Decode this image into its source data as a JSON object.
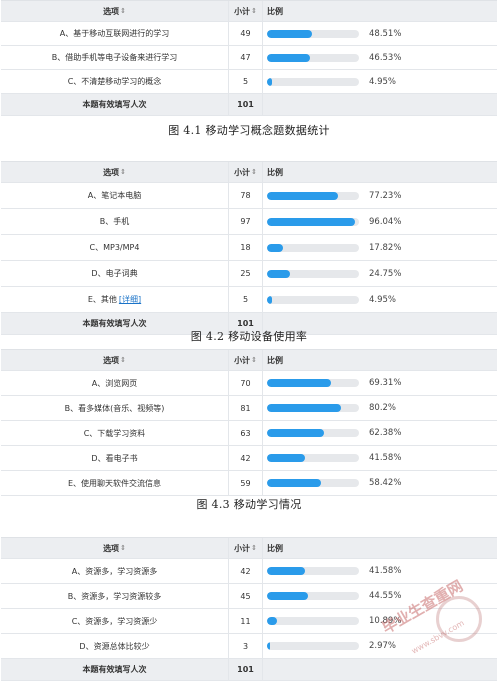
{
  "headers": {
    "option": "选项",
    "count": "小计",
    "ratio": "比例",
    "sort_icon": "⇕"
  },
  "total_label": "本题有效填写人次",
  "tables": [
    {
      "caption": "图 4.1  移动学习概念题数据统计",
      "rows": [
        {
          "label": "A、基于移动互联网进行的学习",
          "count": "49",
          "pct": "48.51%",
          "fraction": 0.4851
        },
        {
          "label": "B、借助手机等电子设备来进行学习",
          "count": "47",
          "pct": "46.53%",
          "fraction": 0.4653
        },
        {
          "label": "C、不清楚移动学习的概念",
          "count": "5",
          "pct": "4.95%",
          "fraction": 0.0495
        }
      ],
      "total": "101"
    },
    {
      "caption": "图 4.2  移动设备使用率",
      "rows": [
        {
          "label": "A、笔记本电脑",
          "count": "78",
          "pct": "77.23%",
          "fraction": 0.7723
        },
        {
          "label": "B、手机",
          "count": "97",
          "pct": "96.04%",
          "fraction": 0.9604
        },
        {
          "label": "C、MP3/MP4",
          "count": "18",
          "pct": "17.82%",
          "fraction": 0.1782
        },
        {
          "label": "D、电子词典",
          "count": "25",
          "pct": "24.75%",
          "fraction": 0.2475
        },
        {
          "label": "E、其他",
          "link": "[详细]",
          "count": "5",
          "pct": "4.95%",
          "fraction": 0.0495
        }
      ],
      "total": "101"
    },
    {
      "caption": "图 4.3  移动学习情况",
      "rows": [
        {
          "label": "A、浏览网页",
          "count": "70",
          "pct": "69.31%",
          "fraction": 0.6931
        },
        {
          "label": "B、看多媒体(音乐、视频等)",
          "count": "81",
          "pct": "80.2%",
          "fraction": 0.802
        },
        {
          "label": "C、下载学习资料",
          "count": "63",
          "pct": "62.38%",
          "fraction": 0.6238
        },
        {
          "label": "D、看电子书",
          "count": "42",
          "pct": "41.58%",
          "fraction": 0.4158
        },
        {
          "label": "E、使用聊天软件交流信息",
          "count": "59",
          "pct": "58.42%",
          "fraction": 0.5842
        }
      ]
    },
    {
      "rows": [
        {
          "label": "A、资源多，学习资源多",
          "count": "42",
          "pct": "41.58%",
          "fraction": 0.4158
        },
        {
          "label": "B、资源多，学习资源较多",
          "count": "45",
          "pct": "44.55%",
          "fraction": 0.4455
        },
        {
          "label": "C、资源多，学习资源少",
          "count": "11",
          "pct": "10.89%",
          "fraction": 0.1089
        },
        {
          "label": "D、资源总体比较少",
          "count": "3",
          "pct": "2.97%",
          "fraction": 0.0297
        }
      ],
      "total": "101"
    }
  ],
  "watermark": {
    "text": "毕业生查重网",
    "url": "www.sbvv.com"
  },
  "colors": {
    "bar_fill": "#2a9bea",
    "bar_track": "#e6e8eb",
    "header_bg": "#eceef1"
  }
}
